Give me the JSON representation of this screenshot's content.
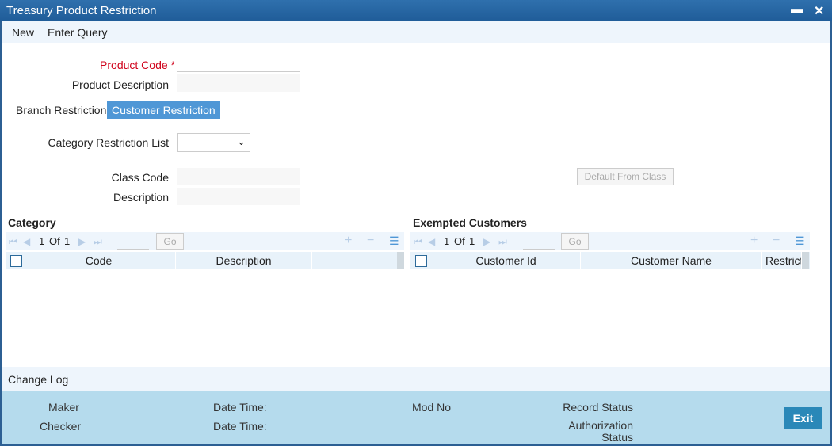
{
  "window": {
    "title": "Treasury Product Restriction",
    "minimize": "▬",
    "close": "✕"
  },
  "toolbar": {
    "new": "New",
    "enter_query": "Enter Query"
  },
  "form": {
    "product_code_label": "Product Code",
    "required_mark": "*",
    "product_code_value": "",
    "product_description_label": "Product Description",
    "product_description_value": "",
    "tabs": [
      "Branch Restriction",
      "Customer Restriction"
    ],
    "category_restriction_list_label": "Category Restriction List",
    "category_restriction_list_value": "",
    "class_code_label": "Class Code",
    "class_code_value": "",
    "description_label": "Description",
    "description_value": "",
    "default_from_class": "Default From Class"
  },
  "category": {
    "title": "Category",
    "page": "1",
    "of": "Of",
    "total": "1",
    "go": "Go",
    "columns": [
      "Code",
      "Description"
    ]
  },
  "exempted": {
    "title": "Exempted Customers",
    "page": "1",
    "of": "Of",
    "total": "1",
    "go": "Go",
    "columns": [
      "Customer Id",
      "Customer Name",
      "Restricti"
    ]
  },
  "change_log": "Change Log",
  "footer": {
    "maker": "Maker",
    "checker": "Checker",
    "date_time": "Date Time:",
    "mod_no": "Mod No",
    "record_status": "Record Status",
    "authorization_status": "Authorization Status",
    "exit": "Exit"
  },
  "colors": {
    "title_bar": "#1f5c98",
    "active_tab": "#4f97d6",
    "footer": "#b5dbed",
    "exit_button": "#2a88b8",
    "required": "#d0021b"
  }
}
